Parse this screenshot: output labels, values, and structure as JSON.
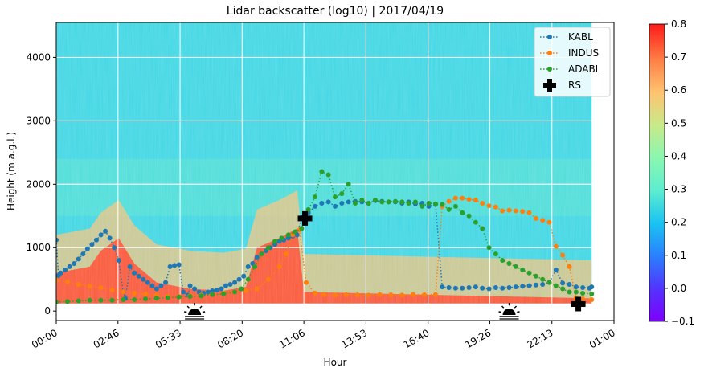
{
  "chart_data": {
    "type": "heatmap",
    "title": "Lidar backscatter (log10) | 2017/04/19",
    "xlabel": "Hour",
    "ylabel": "Height (m.a.g.l.)",
    "x_ticks": [
      "00:00",
      "02:46",
      "05:33",
      "08:20",
      "11:06",
      "13:53",
      "16:40",
      "19:26",
      "22:13",
      "01:00"
    ],
    "x_tick_hours": [
      0,
      2.767,
      5.55,
      8.333,
      11.1,
      13.883,
      16.667,
      19.433,
      22.217,
      25
    ],
    "xlim_hours": [
      0,
      25
    ],
    "y_ticks": [
      "0",
      "1000",
      "2000",
      "3000",
      "4000"
    ],
    "y_tick_values": [
      0,
      1000,
      2000,
      3000,
      4000
    ],
    "ylim": [
      -150,
      4550
    ],
    "grid": true,
    "legend_position": "top-right",
    "colorbar": {
      "ticks": [
        "−0.1",
        "0.0",
        "0.1",
        "0.2",
        "0.3",
        "0.4",
        "0.5",
        "0.6",
        "0.7",
        "0.8"
      ],
      "tick_values": [
        -0.1,
        0.0,
        0.1,
        0.2,
        0.3,
        0.4,
        0.5,
        0.6,
        0.7,
        0.8
      ],
      "range": [
        -0.1,
        0.8
      ],
      "colormap": "rainbow"
    },
    "data_extent_hours": [
      0,
      24
    ],
    "data_extent_height": [
      120,
      4550
    ],
    "heatmap_summary": {
      "high_backscatter_layer_tops": [
        {
          "hour": 0,
          "height": 600
        },
        {
          "hour": 1.5,
          "height": 700
        },
        {
          "hour": 2,
          "height": 950
        },
        {
          "hour": 2.8,
          "height": 1150
        },
        {
          "hour": 3.5,
          "height": 750
        },
        {
          "hour": 4.5,
          "height": 450
        },
        {
          "hour": 6,
          "height": 350
        },
        {
          "hour": 7.5,
          "height": 320
        },
        {
          "hour": 8.5,
          "height": 380
        },
        {
          "hour": 9.0,
          "height": 1000
        },
        {
          "hour": 10,
          "height": 1150
        },
        {
          "hour": 10.8,
          "height": 1300
        },
        {
          "hour": 11.1,
          "height": 300
        },
        {
          "hour": 24,
          "height": 200
        }
      ]
    },
    "series": [
      {
        "name": "KABL",
        "color": "#1f77b4",
        "marker": "circle",
        "linestyle": "dotted",
        "x_hours": [
          0,
          0.1,
          0.2,
          0.4,
          0.6,
          0.8,
          1.0,
          1.2,
          1.4,
          1.6,
          1.8,
          2.0,
          2.2,
          2.4,
          2.6,
          2.8,
          3.0,
          3.1,
          3.3,
          3.5,
          3.7,
          3.9,
          4.1,
          4.3,
          4.5,
          4.7,
          4.9,
          5.1,
          5.3,
          5.5,
          5.7,
          5.9,
          6.0,
          6.2,
          6.4,
          6.6,
          6.8,
          7.0,
          7.2,
          7.4,
          7.6,
          7.8,
          8.0,
          8.2,
          8.4,
          8.6,
          8.8,
          9.0,
          9.2,
          9.4,
          9.6,
          9.8,
          10.0,
          10.2,
          10.4,
          10.6,
          10.8,
          11.0,
          11.3,
          11.6,
          11.9,
          12.2,
          12.5,
          12.8,
          13.1,
          13.4,
          13.7,
          14.0,
          14.3,
          14.6,
          14.9,
          15.2,
          15.5,
          15.8,
          16.1,
          16.4,
          16.7,
          17.0,
          17.3,
          17.6,
          17.9,
          18.2,
          18.5,
          18.8,
          19.1,
          19.4,
          19.7,
          20.0,
          20.3,
          20.6,
          20.9,
          21.2,
          21.5,
          21.8,
          22.1,
          22.4,
          22.7,
          23.0,
          23.3,
          23.6,
          23.9,
          24.0
        ],
        "y": [
          1120,
          560,
          600,
          650,
          700,
          750,
          820,
          900,
          980,
          1050,
          1120,
          1200,
          1260,
          1150,
          1000,
          800,
          300,
          200,
          700,
          600,
          550,
          500,
          450,
          400,
          350,
          400,
          450,
          700,
          720,
          730,
          300,
          250,
          400,
          350,
          300,
          280,
          300,
          320,
          330,
          350,
          400,
          420,
          450,
          500,
          550,
          700,
          750,
          850,
          900,
          950,
          1000,
          1050,
          1100,
          1120,
          1150,
          1180,
          1200,
          1480,
          1550,
          1650,
          1700,
          1720,
          1650,
          1700,
          1720,
          1730,
          1720,
          1700,
          1740,
          1730,
          1720,
          1720,
          1700,
          1720,
          1690,
          1700,
          1650,
          1680,
          380,
          370,
          360,
          360,
          370,
          380,
          360,
          350,
          370,
          360,
          370,
          380,
          390,
          400,
          410,
          420,
          450,
          650,
          440,
          420,
          380,
          370,
          360,
          380
        ],
        "gaps_to_low_hours": [
          [
            11.1,
            300
          ],
          [
            11.5,
            300
          ],
          [
            12.1,
            310
          ],
          [
            13.1,
            300
          ],
          [
            14.4,
            280
          ],
          [
            15.3,
            290
          ],
          [
            16.1,
            300
          ]
        ]
      },
      {
        "name": "INDUS",
        "color": "#ff7f0e",
        "marker": "circle",
        "linestyle": "dotted",
        "x_hours": [
          0,
          0.5,
          1,
          1.5,
          2,
          2.5,
          3,
          3.5,
          4,
          4.5,
          5,
          5.5,
          6,
          6.5,
          7,
          7.5,
          8,
          8.5,
          9,
          9.5,
          10,
          10.3,
          10.6,
          10.9,
          11.2,
          11.6,
          12,
          12.5,
          13,
          13.5,
          14,
          14.5,
          15,
          15.5,
          16,
          16.5,
          17,
          17.3,
          17.6,
          17.9,
          18.2,
          18.5,
          18.8,
          19.1,
          19.4,
          19.7,
          20,
          20.3,
          20.6,
          20.9,
          21.2,
          21.5,
          21.8,
          22.1,
          22.4,
          22.7,
          23.0,
          23.3,
          23.6,
          24.0
        ],
        "y": [
          480,
          460,
          420,
          390,
          370,
          330,
          300,
          280,
          270,
          250,
          230,
          230,
          240,
          250,
          260,
          280,
          300,
          320,
          350,
          500,
          700,
          900,
          1200,
          1280,
          450,
          280,
          260,
          250,
          260,
          255,
          250,
          260,
          255,
          250,
          260,
          255,
          260,
          1650,
          1730,
          1780,
          1780,
          1760,
          1750,
          1700,
          1660,
          1640,
          1580,
          1590,
          1580,
          1570,
          1550,
          1460,
          1430,
          1400,
          1020,
          880,
          700,
          200,
          190,
          180
        ]
      },
      {
        "name": "ADABL",
        "color": "#2ca02c",
        "marker": "circle",
        "linestyle": "dotted",
        "x_hours": [
          0,
          0.5,
          1,
          1.5,
          2,
          2.5,
          3,
          3.5,
          4,
          4.5,
          5,
          5.5,
          6,
          6.5,
          7,
          7.5,
          8,
          8.3,
          8.6,
          8.9,
          9.2,
          9.5,
          9.8,
          10.1,
          10.4,
          10.7,
          11.0,
          11.3,
          11.6,
          11.9,
          12.2,
          12.5,
          12.8,
          13.1,
          13.4,
          13.7,
          14.0,
          14.3,
          14.6,
          14.9,
          15.2,
          15.5,
          15.8,
          16.1,
          16.4,
          16.7,
          17.0,
          17.3,
          17.6,
          17.9,
          18.2,
          18.5,
          18.8,
          19.1,
          19.4,
          19.7,
          20.0,
          20.3,
          20.6,
          20.9,
          21.2,
          21.5,
          21.8,
          22.1,
          22.4,
          22.7,
          23.0,
          23.3,
          23.6,
          24.0
        ],
        "y": [
          140,
          150,
          160,
          170,
          170,
          170,
          180,
          180,
          190,
          200,
          210,
          220,
          230,
          240,
          260,
          270,
          300,
          350,
          500,
          700,
          900,
          1000,
          1100,
          1150,
          1200,
          1250,
          1300,
          1600,
          1800,
          2200,
          2150,
          1800,
          1850,
          2000,
          1700,
          1750,
          1700,
          1750,
          1720,
          1720,
          1730,
          1720,
          1700,
          1720,
          1650,
          1700,
          1690,
          1680,
          1600,
          1650,
          1550,
          1500,
          1400,
          1300,
          1000,
          900,
          800,
          750,
          700,
          650,
          600,
          550,
          500,
          450,
          400,
          350,
          300,
          300,
          280,
          270
        ]
      },
      {
        "name": "RS",
        "color": "#000000",
        "marker": "plus",
        "x_hours": [
          11.15,
          23.4
        ],
        "y": [
          1460,
          110
        ]
      }
    ],
    "annotations": [
      {
        "type": "sunrise-icon",
        "hour": 6.2
      },
      {
        "type": "sunset-icon",
        "hour": 20.3
      }
    ]
  }
}
